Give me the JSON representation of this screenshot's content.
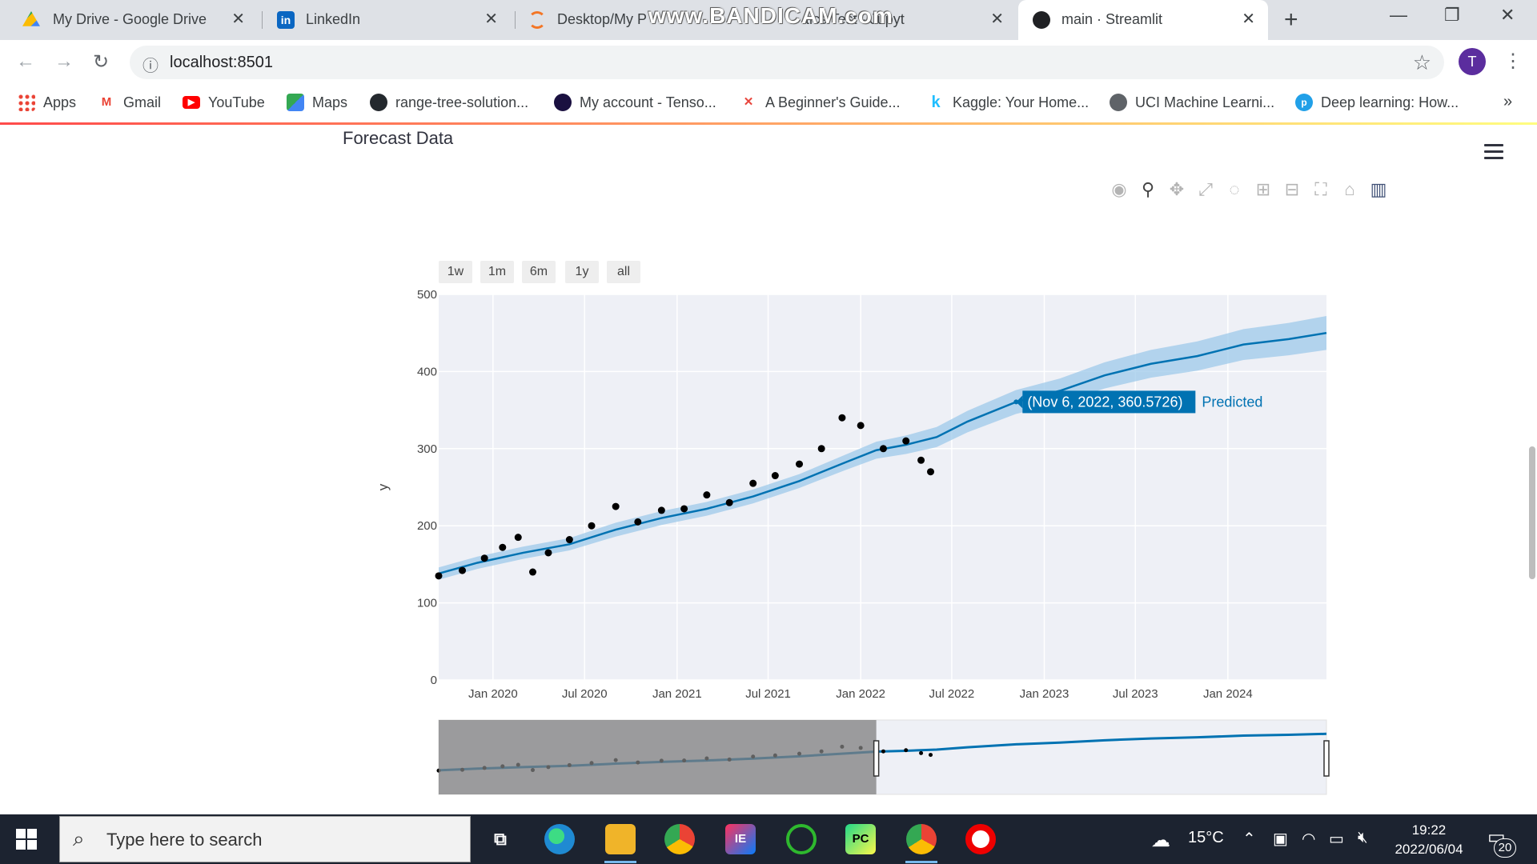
{
  "browser": {
    "tabs": [
      {
        "title": "My Drive - Google Drive",
        "icon": "google-drive-icon",
        "active": false
      },
      {
        "title": "LinkedIn",
        "icon": "linkedin-icon",
        "active": false
      },
      {
        "title": "Desktop/My P",
        "icon": "jupyter-icon",
        "active": false
      },
      {
        "title": "tics Test - Jupyt",
        "icon": "jupyter-icon",
        "active": false
      },
      {
        "title": "main · Streamlit",
        "icon": "streamlit-icon",
        "active": true
      }
    ],
    "tab_close_glyph": "✕",
    "new_tab_glyph": "+",
    "watermark": "www.BANDICAM.com",
    "window_controls": {
      "minimize": "—",
      "restore": "❐",
      "close": "✕"
    },
    "nav": {
      "back": "←",
      "forward": "→",
      "reload": "↻"
    },
    "omnibox": {
      "info_glyph": "ⓘ",
      "url": "localhost:8501",
      "star_glyph": "☆"
    },
    "profile_initial": "T",
    "menu_glyph": "⋮",
    "bookmarks": [
      {
        "label": "Apps",
        "icon": "apps-grid-icon"
      },
      {
        "label": "Gmail",
        "icon": "gmail-icon"
      },
      {
        "label": "YouTube",
        "icon": "youtube-icon"
      },
      {
        "label": "Maps",
        "icon": "google-maps-icon"
      },
      {
        "label": "range-tree-solution...",
        "icon": "github-icon"
      },
      {
        "label": "My account - Tenso...",
        "icon": "tensorflow-account-icon"
      },
      {
        "label": "A Beginner's Guide...",
        "icon": "guide-site-icon"
      },
      {
        "label": "Kaggle: Your Home...",
        "icon": "kaggle-icon"
      },
      {
        "label": "UCI Machine Learni...",
        "icon": "globe-icon"
      },
      {
        "label": "Deep learning: How...",
        "icon": "paperswithcode-icon"
      }
    ],
    "bookmarks_more": "»",
    "accent_colors": {
      "streamlit_gradient_start": "#ff4b4b",
      "streamlit_gradient_end": "#fffd80"
    }
  },
  "page": {
    "title": "Forecast Data",
    "modebar": [
      "camera-icon",
      "zoom-icon",
      "pan-icon",
      "autoscale-icon",
      "lasso-icon",
      "zoom-in-icon",
      "zoom-out-icon",
      "reset-axes-icon",
      "home-icon",
      "plotly-logo-icon"
    ],
    "range_buttons": [
      "1w",
      "1m",
      "6m",
      "1y",
      "all"
    ],
    "tooltip": {
      "text": "(Nov 6, 2022, 360.5726)",
      "series": "Predicted"
    }
  },
  "chart_data": {
    "type": "line",
    "title": "",
    "xlabel": "",
    "ylabel": "y",
    "x_range": [
      "2019-09-15",
      "2024-07-15"
    ],
    "ylim": [
      0,
      500
    ],
    "y_ticks": [
      0,
      100,
      200,
      300,
      400,
      500
    ],
    "x_ticks": [
      "Jan 2020",
      "Jul 2020",
      "Jan 2021",
      "Jul 2021",
      "Jan 2022",
      "Jul 2022",
      "Jan 2023",
      "Jul 2023",
      "Jan 2024"
    ],
    "grid": true,
    "legend": "none",
    "series": [
      {
        "name": "Predicted",
        "color": "#0072b2",
        "x": [
          "2019-09-15",
          "2019-12-01",
          "2020-03-01",
          "2020-06-01",
          "2020-09-01",
          "2020-12-01",
          "2021-03-01",
          "2021-06-01",
          "2021-09-01",
          "2021-12-01",
          "2022-02-01",
          "2022-04-01",
          "2022-06-01",
          "2022-08-01",
          "2022-11-06",
          "2023-02-01",
          "2023-05-01",
          "2023-08-01",
          "2023-11-01",
          "2024-02-01",
          "2024-05-01",
          "2024-07-15"
        ],
        "values": [
          138,
          152,
          165,
          176,
          195,
          210,
          222,
          238,
          258,
          282,
          298,
          305,
          315,
          335,
          360.5726,
          375,
          395,
          410,
          420,
          435,
          442,
          450
        ],
        "lower": [
          130,
          144,
          157,
          168,
          186,
          201,
          213,
          229,
          249,
          272,
          287,
          293,
          302,
          321,
          345,
          359,
          378,
          392,
          401,
          415,
          421,
          428
        ],
        "upper": [
          146,
          160,
          173,
          184,
          204,
          219,
          231,
          247,
          267,
          292,
          309,
          317,
          328,
          349,
          376,
          391,
          412,
          428,
          439,
          455,
          463,
          472
        ]
      },
      {
        "name": "Actual",
        "color": "#000000",
        "x": [
          "2019-09-15",
          "2019-11-01",
          "2019-12-15",
          "2020-01-20",
          "2020-02-20",
          "2020-03-20",
          "2020-04-20",
          "2020-06-01",
          "2020-07-15",
          "2020-09-01",
          "2020-10-15",
          "2020-12-01",
          "2021-01-15",
          "2021-03-01",
          "2021-04-15",
          "2021-06-01",
          "2021-07-15",
          "2021-09-01",
          "2021-10-15",
          "2021-11-25",
          "2022-01-01",
          "2022-02-15",
          "2022-04-01",
          "2022-05-01",
          "2022-05-20"
        ],
        "values": [
          135,
          142,
          158,
          172,
          185,
          140,
          165,
          182,
          200,
          225,
          205,
          220,
          222,
          240,
          230,
          255,
          265,
          280,
          300,
          340,
          330,
          300,
          310,
          285,
          270
        ]
      }
    ],
    "range_slider": {
      "selected_end": "2022-02-01"
    }
  },
  "taskbar": {
    "search_placeholder": "Type here to search",
    "search_glyph": "⌕",
    "apps": [
      "task-view-icon",
      "edge-icon",
      "file-explorer-icon",
      "chrome-icon",
      "intellij-icon",
      "spyder-icon",
      "pycharm-icon",
      "chrome-icon",
      "bandicam-record-icon"
    ],
    "weather": "15°C",
    "time": "19:22",
    "date": "2022/06/04",
    "notification_count": "20"
  }
}
